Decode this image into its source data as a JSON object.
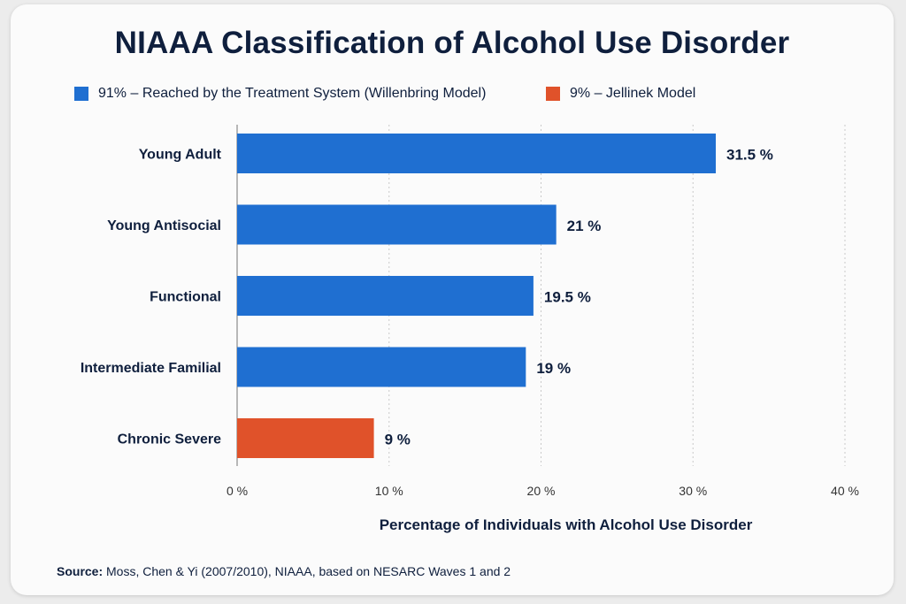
{
  "title": "NIAAA Classification of Alcohol Use Disorder",
  "legend": [
    {
      "label": "91% – Reached by the Treatment System (Willenbring Model)",
      "color": "#1f6fd1"
    },
    {
      "label": "9% – Jellinek Model",
      "color": "#e0522a"
    }
  ],
  "source": {
    "prefix": "Source:",
    "text": " Moss, Chen & Yi (2007/2010), NIAAA, based on NESARC Waves 1 and 2"
  },
  "chart_data": {
    "type": "bar",
    "orientation": "horizontal",
    "title": "NIAAA Classification of Alcohol Use Disorder",
    "xlabel": "Percentage of Individuals with Alcohol Use Disorder",
    "ylabel": "",
    "xlim": [
      0,
      40
    ],
    "ticks": [
      0,
      10,
      20,
      30,
      40
    ],
    "tick_labels": [
      "0 %",
      "10 %",
      "20 %",
      "30 %",
      "40 %"
    ],
    "grid": "vertical dotted",
    "legend_position": "top-left",
    "categories": [
      "Young Adult",
      "Young Antisocial",
      "Functional",
      "Intermediate Familial",
      "Chronic Severe"
    ],
    "values": [
      31.5,
      21,
      19.5,
      19,
      9
    ],
    "value_labels": [
      "31.5 %",
      "21 %",
      "19.5 %",
      "19 %",
      "9 %"
    ],
    "bar_colors": [
      "#1f6fd1",
      "#1f6fd1",
      "#1f6fd1",
      "#1f6fd1",
      "#e0522a"
    ]
  }
}
